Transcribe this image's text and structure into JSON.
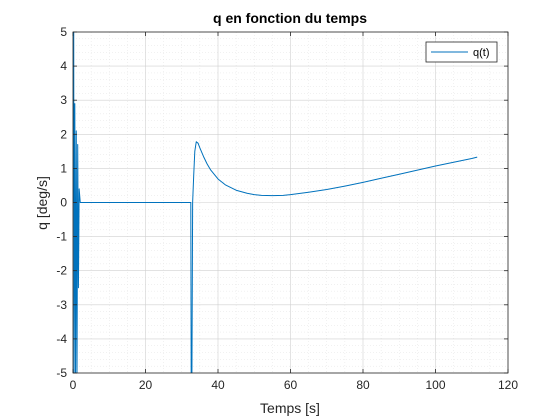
{
  "chart_data": {
    "type": "line",
    "title": "q en fonction du temps",
    "xlabel": "Temps [s]",
    "ylabel": "q [deg/s]",
    "xlim": [
      0,
      120
    ],
    "ylim": [
      -5,
      5
    ],
    "x_ticks": [
      0,
      20,
      40,
      60,
      80,
      100,
      120
    ],
    "y_ticks": [
      -5,
      -4,
      -3,
      -2,
      -1,
      0,
      1,
      2,
      3,
      4,
      5
    ],
    "grid": "major and minor (dotted)",
    "legend_position": "top-right",
    "series": [
      {
        "name": "q(t)",
        "color": "#0072bd",
        "x": [
          0,
          0.2,
          0.3,
          0.5,
          0.7,
          0.9,
          1.1,
          1.3,
          1.5,
          1.7,
          2,
          5,
          10,
          20,
          30,
          32.5,
          32.6,
          32.8,
          33.0,
          33.3,
          33.6,
          34.0,
          34.5,
          35,
          36,
          37,
          38,
          40,
          42,
          45,
          48,
          50,
          52,
          55,
          58,
          60,
          65,
          70,
          75,
          80,
          85,
          90,
          95,
          100,
          105,
          110,
          111.5
        ],
        "y": [
          0,
          5.2,
          -5.2,
          2.9,
          -5.2,
          2.1,
          -5.2,
          1.7,
          -2.5,
          0.4,
          0,
          0,
          0,
          0,
          0,
          0,
          -5.2,
          -5.2,
          0.0,
          0.8,
          1.5,
          1.78,
          1.74,
          1.6,
          1.35,
          1.13,
          0.95,
          0.69,
          0.52,
          0.36,
          0.27,
          0.23,
          0.21,
          0.2,
          0.21,
          0.23,
          0.3,
          0.38,
          0.48,
          0.59,
          0.71,
          0.83,
          0.95,
          1.07,
          1.18,
          1.29,
          1.33
        ]
      }
    ]
  }
}
